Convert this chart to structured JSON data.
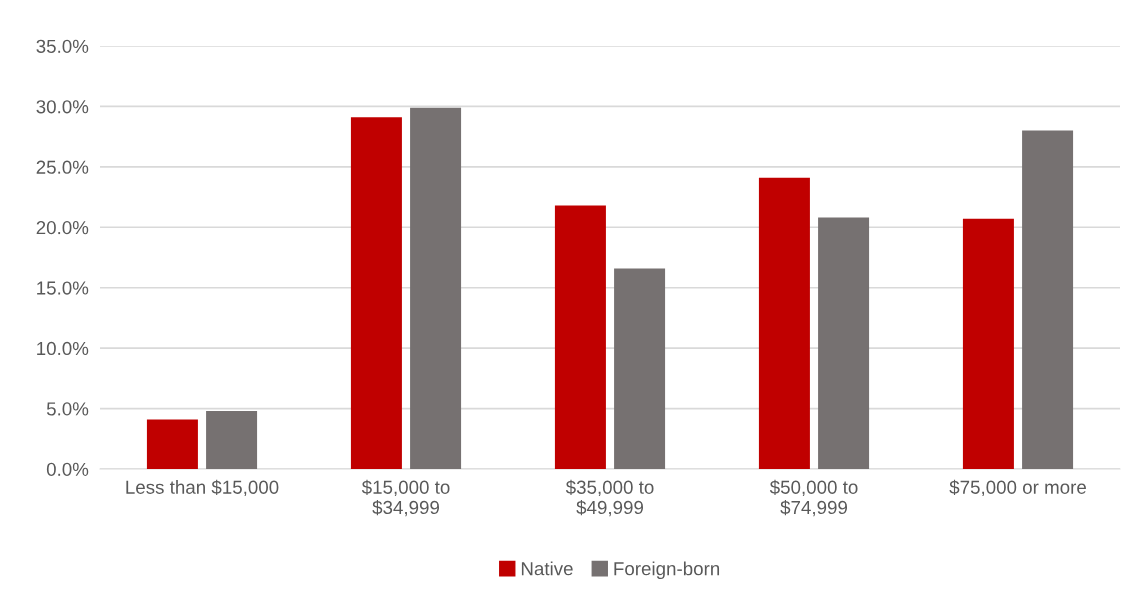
{
  "chart_data": {
    "type": "bar",
    "categories": [
      "Less than $15,000",
      "$15,000 to\n$34,999",
      "$35,000 to\n$49,999",
      "$50,000 to\n$74,999",
      "$75,000 or more"
    ],
    "series": [
      {
        "name": "Native",
        "color": "#c00000",
        "values": [
          4.1,
          29.1,
          21.8,
          24.1,
          20.7
        ]
      },
      {
        "name": "Foreign-born",
        "color": "#767171",
        "values": [
          4.8,
          29.9,
          16.6,
          20.8,
          28.0
        ]
      }
    ],
    "ylim": [
      0,
      35
    ],
    "yticks": [
      {
        "value": 0,
        "label": "0.0%"
      },
      {
        "value": 5,
        "label": "5.0%"
      },
      {
        "value": 10,
        "label": "10.0%"
      },
      {
        "value": 15,
        "label": "15.0%"
      },
      {
        "value": 20,
        "label": "20.0%"
      },
      {
        "value": 25,
        "label": "25.0%"
      },
      {
        "value": 30,
        "label": "30.0%"
      },
      {
        "value": 35,
        "label": "35.0%"
      }
    ],
    "grid": "y",
    "legend": "bottom"
  }
}
